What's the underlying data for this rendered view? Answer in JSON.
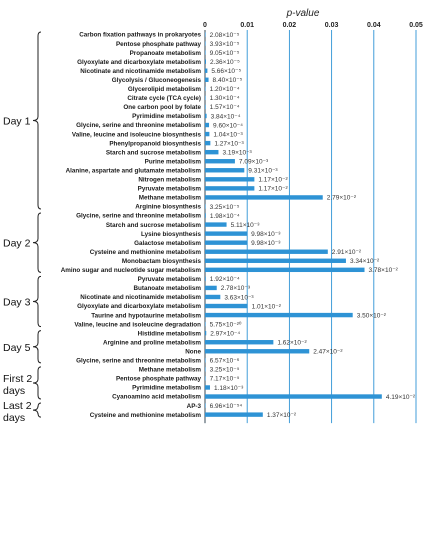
{
  "chart_data": {
    "type": "bar",
    "orientation": "horizontal",
    "axis_title": "p-value",
    "xlim": [
      0,
      0.05
    ],
    "xticks": [
      "0",
      "0.01",
      "0.02",
      "0.03",
      "0.04",
      "0.05"
    ],
    "vertical_gridlines": true,
    "bar_color": "#2e93d5",
    "groups": [
      {
        "label": "Day 1",
        "bars": [
          {
            "pathway": "Carbon fixation pathways in prokaryotes",
            "value": 2.08e-05,
            "label": "2.08×10⁻⁵"
          },
          {
            "pathway": "Pentose phosphate pathway",
            "value": 3.93e-05,
            "label": "3.93×10⁻⁵"
          },
          {
            "pathway": "Propanoate metabolism",
            "value": 9.05e-05,
            "label": "9.05×10⁻⁵"
          },
          {
            "pathway": "Glyoxylate and dicarboxylate metabolism",
            "value": 0.000236,
            "label": "2.36×10⁻⁵"
          },
          {
            "pathway": "Nicotinate and nicotinamide metabolism",
            "value": 0.000566,
            "label": "5.66×10⁻⁵"
          },
          {
            "pathway": "Glycolysis / Gluconeogenesis",
            "value": 0.00084,
            "label": "8.40×10⁻⁵"
          },
          {
            "pathway": "Glycerolipid metabolism",
            "value": 0.00012,
            "label": "1.20×10⁻⁴"
          },
          {
            "pathway": "Citrate cycle (TCA cycle)",
            "value": 0.00013,
            "label": "1.30×10⁻⁴"
          },
          {
            "pathway": "One carbon pool by folate",
            "value": 0.000157,
            "label": "1.57×10⁻⁴"
          },
          {
            "pathway": "Pyrimidine metabolism",
            "value": 0.000384,
            "label": "3.84×10⁻⁴"
          },
          {
            "pathway": "Glycine, serine and threonine metabolism",
            "value": 0.00096,
            "label": "9.60×10⁻⁴"
          },
          {
            "pathway": "Valine, leucine and isoleucine biosynthesis",
            "value": 0.00104,
            "label": "1.04×10⁻³"
          },
          {
            "pathway": "Phenylpropanoid biosynthesis",
            "value": 0.00127,
            "label": "1.27×10⁻³"
          },
          {
            "pathway": "Starch and sucrose metabolism",
            "value": 0.00319,
            "label": "3.19×10⁻³"
          },
          {
            "pathway": "Purine metabolism",
            "value": 0.00709,
            "label": "7.09×10⁻³"
          },
          {
            "pathway": "Alanine, aspartate and glutamate metabolism",
            "value": 0.00931,
            "label": "9.31×10⁻³"
          },
          {
            "pathway": "Nitrogen metabolism",
            "value": 0.0117,
            "label": "1.17×10⁻²"
          },
          {
            "pathway": "Pyruvate metabolism",
            "value": 0.0117,
            "label": "1.17×10⁻²"
          },
          {
            "pathway": "Methane metabolism",
            "value": 0.0279,
            "label": "2.79×10⁻²"
          },
          {
            "pathway": "Arginine biosynthesis",
            "value": 3.25e-06,
            "label": "3.25×10⁻⁵"
          }
        ]
      },
      {
        "label": "Day 2",
        "bars": [
          {
            "pathway": "Glycine, serine and threonine metabolism",
            "value": 0.000198,
            "label": "1.98×10⁻⁴"
          },
          {
            "pathway": "Starch and sucrose metabolism",
            "value": 0.00511,
            "label": "5.11×10⁻³"
          },
          {
            "pathway": "Lysine biosynthesis",
            "value": 0.00998,
            "label": "9.98×10⁻³"
          },
          {
            "pathway": "Galactose metabolism",
            "value": 0.00998,
            "label": "9.98×10⁻³"
          },
          {
            "pathway": "Cysteine and methionine metabolism",
            "value": 0.0291,
            "label": "2.91×10⁻²"
          },
          {
            "pathway": "Monobactam biosynthesis",
            "value": 0.0334,
            "label": "3.34×10⁻²"
          },
          {
            "pathway": "Amino sugar and nucleotide sugar metabolism",
            "value": 0.0378,
            "label": "3.78×10⁻²"
          }
        ]
      },
      {
        "label": "Day 3",
        "bars": [
          {
            "pathway": "Pyruvate metabolism",
            "value": 0.000192,
            "label": "1.92×10⁻⁴"
          },
          {
            "pathway": "Butanoate metabolism",
            "value": 0.00278,
            "label": "2.78×10⁻³"
          },
          {
            "pathway": "Nicotinate and nicotinamide metabolism",
            "value": 0.00363,
            "label": "3.63×10⁻³"
          },
          {
            "pathway": "Glyoxylate and dicarboxylate metabolism",
            "value": 0.0101,
            "label": "1.01×10⁻²"
          },
          {
            "pathway": "Taurine and hypotaurine metabolism",
            "value": 0.035,
            "label": "3.50×10⁻²"
          },
          {
            "pathway": "Valine, leucine and isoleucine degradation",
            "value": 5.75e-06,
            "label": "5.75×10⁻²⁰"
          }
        ]
      },
      {
        "label": "Day 5",
        "bars": [
          {
            "pathway": "Histidine metabolism",
            "value": 0.000297,
            "label": "2.97×10⁻⁴"
          },
          {
            "pathway": "Arginine and proline metabolism",
            "value": 0.0162,
            "label": "1.62×10⁻²"
          },
          {
            "pathway": "None",
            "value": 0.0247,
            "label": "2.47×10⁻²"
          },
          {
            "pathway": "Glycine, serine and threonine metabolism",
            "value": 6.57e-05,
            "label": "6.57×10⁻⁶"
          }
        ]
      },
      {
        "label": "First 2 days",
        "bars": [
          {
            "pathway": "Methane metabolism",
            "value": 3.25e-05,
            "label": "3.25×10⁻⁵"
          },
          {
            "pathway": "Pentose phosphate pathway",
            "value": 7.17e-05,
            "label": "7.17×10⁻⁵"
          },
          {
            "pathway": "Pyrimidine metabolism",
            "value": 0.00118,
            "label": "1.18×10⁻³"
          },
          {
            "pathway": "Cyanoamino acid metabolism",
            "value": 0.0419,
            "label": "4.19×10⁻²"
          }
        ]
      },
      {
        "label": "Last 2 days",
        "bars": [
          {
            "pathway": "AP-3",
            "value": 6.96e-07,
            "label": "6.96×10⁻⁵⁴"
          },
          {
            "pathway": "Cysteine and methionine metabolism",
            "value": 0.0137,
            "label": "1.37×10⁻²"
          }
        ]
      }
    ]
  }
}
